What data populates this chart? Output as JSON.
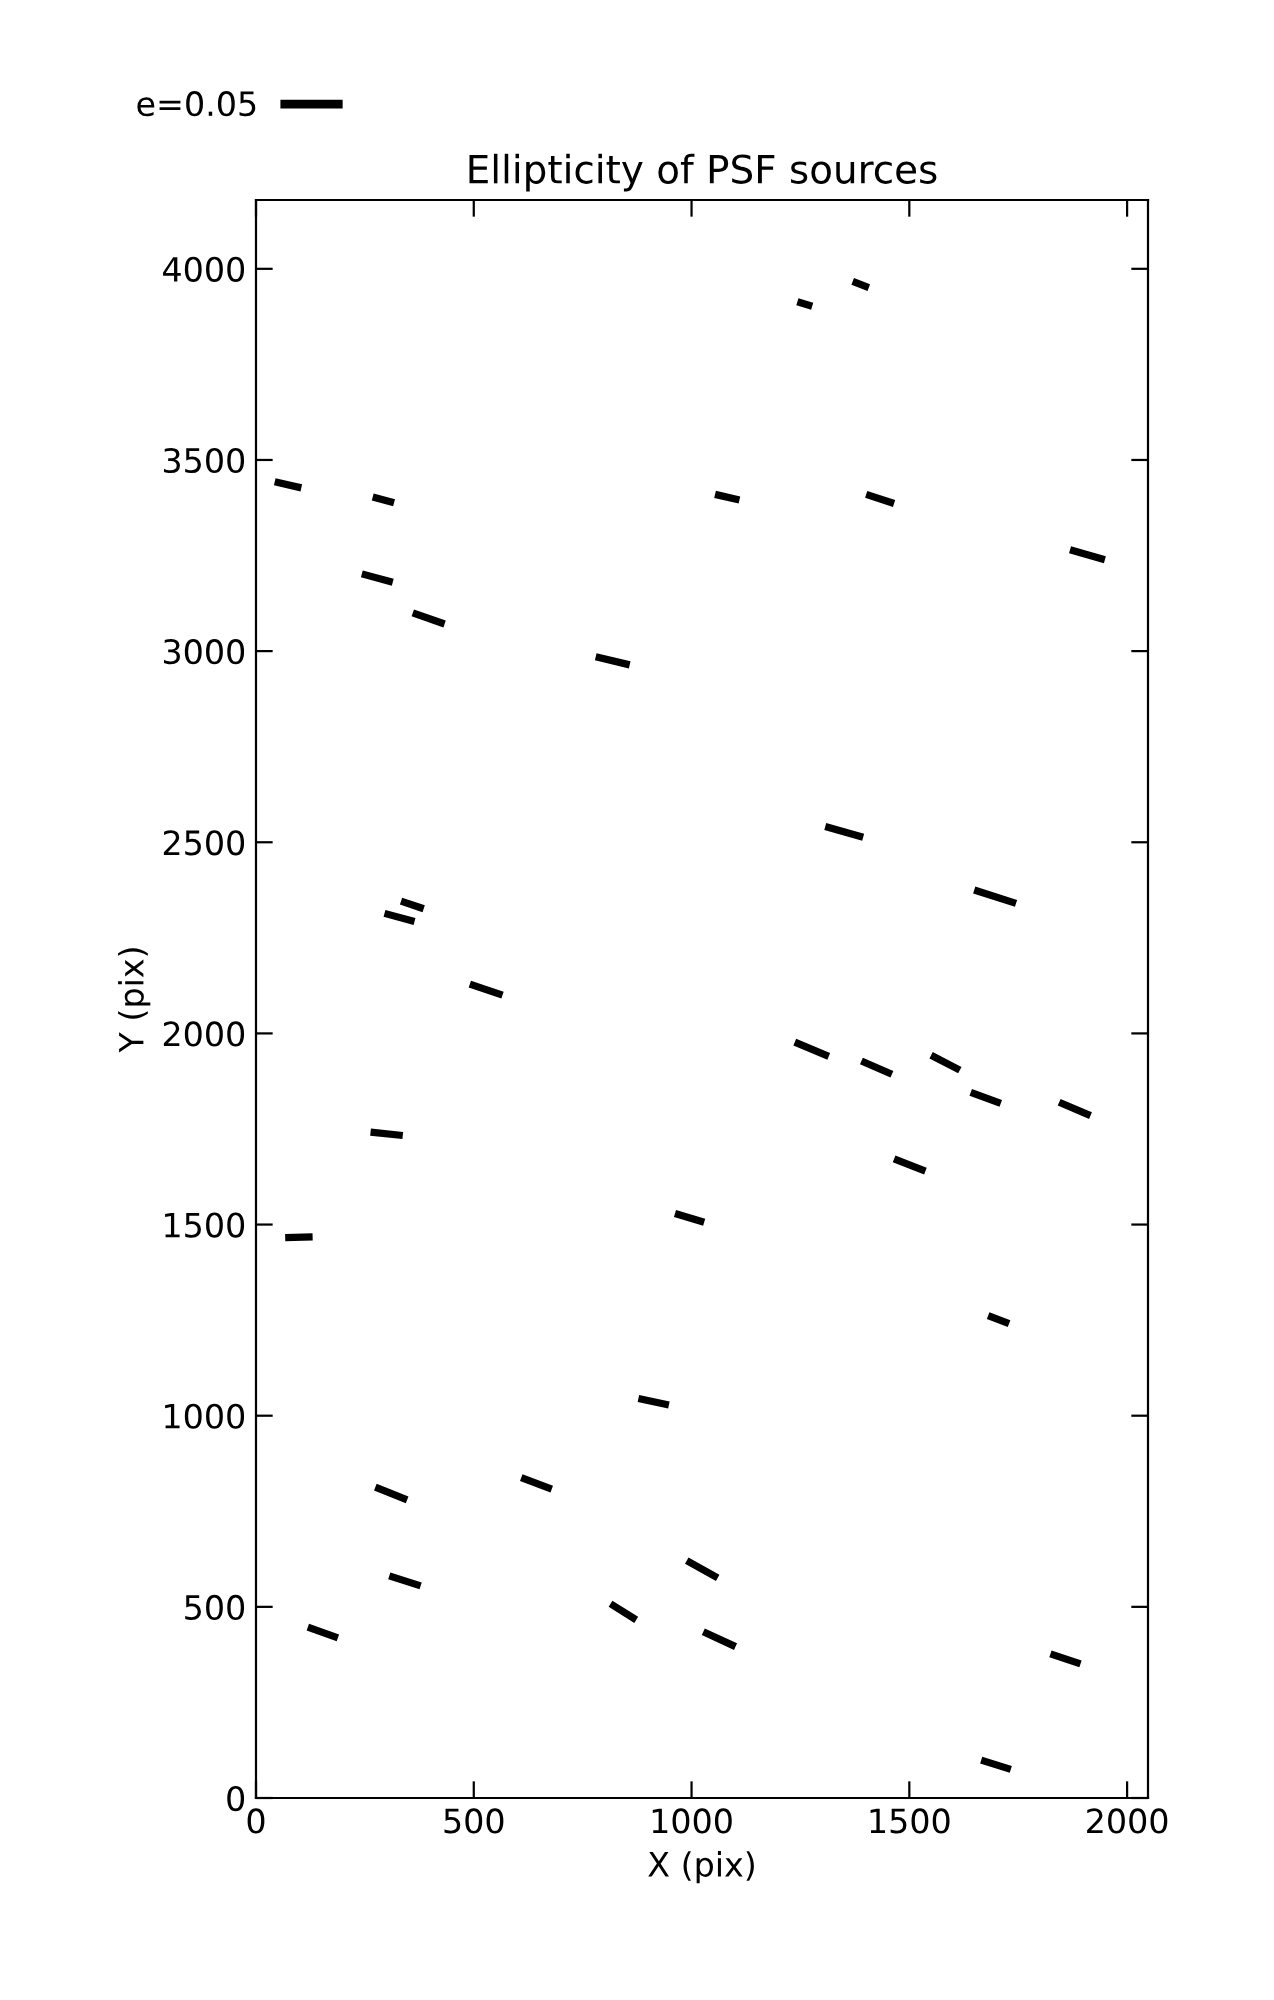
{
  "chart_data": {
    "type": "line",
    "title": "Ellipticity of PSF sources",
    "xlabel": "X (pix)",
    "ylabel": "Y (pix)",
    "xlim": [
      0,
      2048
    ],
    "ylim": [
      0,
      4180
    ],
    "xticks": [
      0,
      500,
      1000,
      1500,
      2000
    ],
    "yticks": [
      0,
      500,
      1000,
      1500,
      2000,
      2500,
      3000,
      3500,
      4000
    ],
    "legend": "top left",
    "series": [
      {
        "name": "e=0.05",
        "color": "#000000",
        "x": [
          1243,
          1277,
          null,
          1370,
          1407,
          null,
          1054,
          1110,
          null,
          1401,
          1465,
          null,
          1869,
          1949,
          null,
          1307,
          1394,
          null,
          1649,
          1745,
          null,
          43,
          104,
          null,
          268,
          317,
          null,
          243,
          314,
          null,
          360,
          433,
          null,
          780,
          858,
          null,
          333,
          385,
          null,
          295,
          364,
          null,
          491,
          566,
          null,
          263,
          337,
          null,
          67,
          130,
          null,
          962,
          1029,
          null,
          878,
          948,
          null,
          274,
          347,
          null,
          609,
          679,
          null,
          306,
          378,
          null,
          119,
          188,
          null,
          814,
          873,
          null,
          989,
          1060,
          null,
          1237,
          1315,
          null,
          1390,
          1460,
          null,
          1550,
          1616,
          null,
          1641,
          1710,
          null,
          1844,
          1916,
          null,
          1465,
          1537,
          null,
          1681,
          1729,
          null,
          1027,
          1101,
          null,
          1824,
          1893,
          null,
          1665,
          1733
        ],
        "values": [
          3914,
          3902,
          null,
          3967,
          3951,
          null,
          3410,
          3395,
          null,
          3410,
          3386,
          null,
          3265,
          3239,
          null,
          2541,
          2513,
          null,
          2375,
          2340,
          null,
          3443,
          3427,
          null,
          3403,
          3388,
          null,
          3202,
          3180,
          null,
          3100,
          3071,
          null,
          2985,
          2964,
          null,
          2346,
          2326,
          null,
          2314,
          2293,
          null,
          2129,
          2100,
          null,
          1742,
          1733,
          null,
          1466,
          1468,
          null,
          1529,
          1506,
          null,
          1045,
          1028,
          null,
          813,
          780,
          null,
          838,
          808,
          null,
          581,
          555,
          null,
          447,
          419,
          null,
          508,
          466,
          null,
          621,
          576,
          null,
          1977,
          1940,
          null,
          1928,
          1893,
          null,
          1943,
          1904,
          null,
          1846,
          1817,
          null,
          1820,
          1785,
          null,
          1672,
          1640,
          null,
          1262,
          1241,
          null,
          435,
          396,
          null,
          377,
          351,
          null,
          99,
          75
        ]
      }
    ]
  }
}
